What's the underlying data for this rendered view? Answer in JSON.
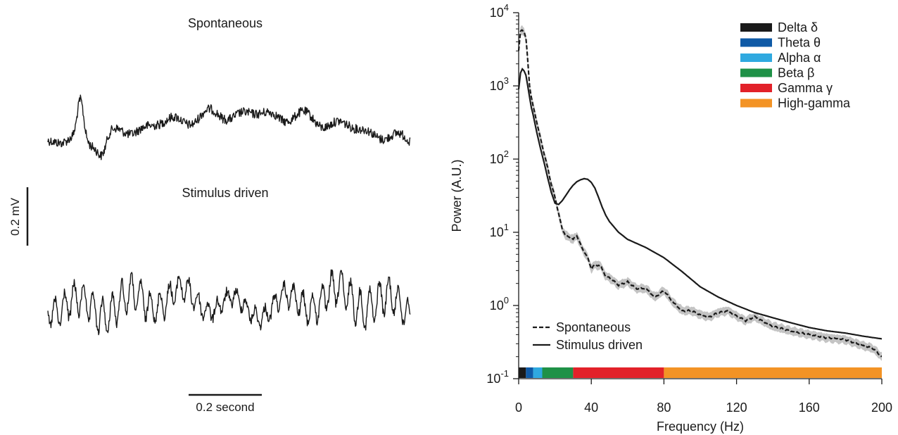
{
  "chart_data": [
    {
      "type": "line",
      "panel": "left",
      "series": [
        {
          "name": "Spontaneous",
          "title": "Spontaneous",
          "color": "#1a1a1a"
        },
        {
          "name": "Stimulus driven",
          "title": "Stimulus driven",
          "color": "#1a1a1a"
        }
      ],
      "scale_bars": {
        "amplitude": {
          "value": 0.2,
          "label": "0.2 mV"
        },
        "time": {
          "value": 0.2,
          "label": "0.2 second"
        }
      },
      "duration_s": 1.0
    },
    {
      "type": "line",
      "panel": "right",
      "title": "",
      "xlabel": "Frequency (Hz)",
      "ylabel": "Power (A.U.)",
      "xlim": [
        0,
        200
      ],
      "ylim": [
        0.1,
        10000
      ],
      "yscale": "log",
      "grid": false,
      "legend_position": "bottom-left",
      "xticks": [
        {
          "value": 0,
          "label": "0"
        },
        {
          "value": 40,
          "label": "40"
        },
        {
          "value": 80,
          "label": "80"
        },
        {
          "value": 120,
          "label": "120"
        },
        {
          "value": 160,
          "label": "160"
        },
        {
          "value": 200,
          "label": "200"
        }
      ],
      "yticks": [
        {
          "value": 0.1,
          "base": "10",
          "exp": "-1"
        },
        {
          "value": 1,
          "base": "10",
          "exp": "0"
        },
        {
          "value": 10,
          "base": "10",
          "exp": "1"
        },
        {
          "value": 100,
          "base": "10",
          "exp": "2"
        },
        {
          "value": 1000,
          "base": "10",
          "exp": "3"
        },
        {
          "value": 10000,
          "base": "10",
          "exp": "4"
        }
      ],
      "series": [
        {
          "name": "Spontaneous",
          "style": "dashed",
          "color": "#1a1a1a",
          "band_color": "#c4c4c4",
          "x": [
            0,
            1,
            2,
            3,
            4,
            5,
            6,
            7,
            8,
            10,
            12,
            14,
            16,
            18,
            20,
            22,
            24,
            26,
            28,
            30,
            32,
            35,
            38,
            40,
            42,
            45,
            48,
            50,
            55,
            60,
            65,
            70,
            75,
            80,
            85,
            90,
            95,
            100,
            105,
            110,
            115,
            120,
            125,
            130,
            135,
            140,
            150,
            160,
            170,
            180,
            190,
            195,
            200
          ],
          "y": [
            3000,
            5500,
            5800,
            5500,
            4500,
            2200,
            1000,
            700,
            520,
            320,
            190,
            120,
            75,
            45,
            30,
            18,
            11,
            9,
            8.5,
            8,
            9,
            6,
            4.5,
            3.2,
            3.6,
            3.5,
            2.5,
            2.4,
            1.9,
            2.1,
            1.7,
            1.7,
            1.3,
            1.6,
            1.1,
            0.85,
            0.85,
            0.75,
            0.7,
            0.8,
            0.85,
            0.72,
            0.62,
            0.7,
            0.6,
            0.52,
            0.45,
            0.4,
            0.36,
            0.34,
            0.28,
            0.26,
            0.2
          ]
        },
        {
          "name": "Stimulus driven",
          "style": "solid",
          "color": "#1a1a1a",
          "x": [
            0,
            1,
            2,
            3,
            4,
            5,
            6,
            7,
            8,
            10,
            12,
            14,
            16,
            18,
            20,
            22,
            24,
            26,
            28,
            30,
            32,
            34,
            36,
            38,
            40,
            42,
            44,
            46,
            48,
            50,
            55,
            60,
            70,
            80,
            90,
            100,
            110,
            120,
            130,
            140,
            150,
            160,
            170,
            180,
            190,
            200
          ],
          "y": [
            900,
            1500,
            1700,
            1600,
            1400,
            1000,
            700,
            500,
            400,
            230,
            140,
            90,
            55,
            35,
            25,
            24,
            27,
            32,
            38,
            44,
            49,
            52,
            54,
            53,
            48,
            40,
            30,
            22,
            17,
            14,
            10,
            8,
            6.2,
            4.5,
            2.9,
            1.8,
            1.3,
            1.0,
            0.8,
            0.68,
            0.58,
            0.5,
            0.45,
            0.42,
            0.38,
            0.35
          ]
        }
      ],
      "bands": [
        {
          "name": "Delta δ",
          "range": [
            0.5,
            4
          ],
          "color": "#1a1a1a"
        },
        {
          "name": "Theta θ",
          "range": [
            4,
            8
          ],
          "color": "#0f5aa6"
        },
        {
          "name": "Alpha α",
          "range": [
            8,
            13
          ],
          "color": "#2fa9e0"
        },
        {
          "name": "Beta β",
          "range": [
            13,
            30
          ],
          "color": "#1f9147"
        },
        {
          "name": "Gamma γ",
          "range": [
            30,
            80
          ],
          "color": "#e22129"
        },
        {
          "name": "High-gamma",
          "range": [
            80,
            200
          ],
          "color": "#f39325"
        }
      ]
    }
  ]
}
